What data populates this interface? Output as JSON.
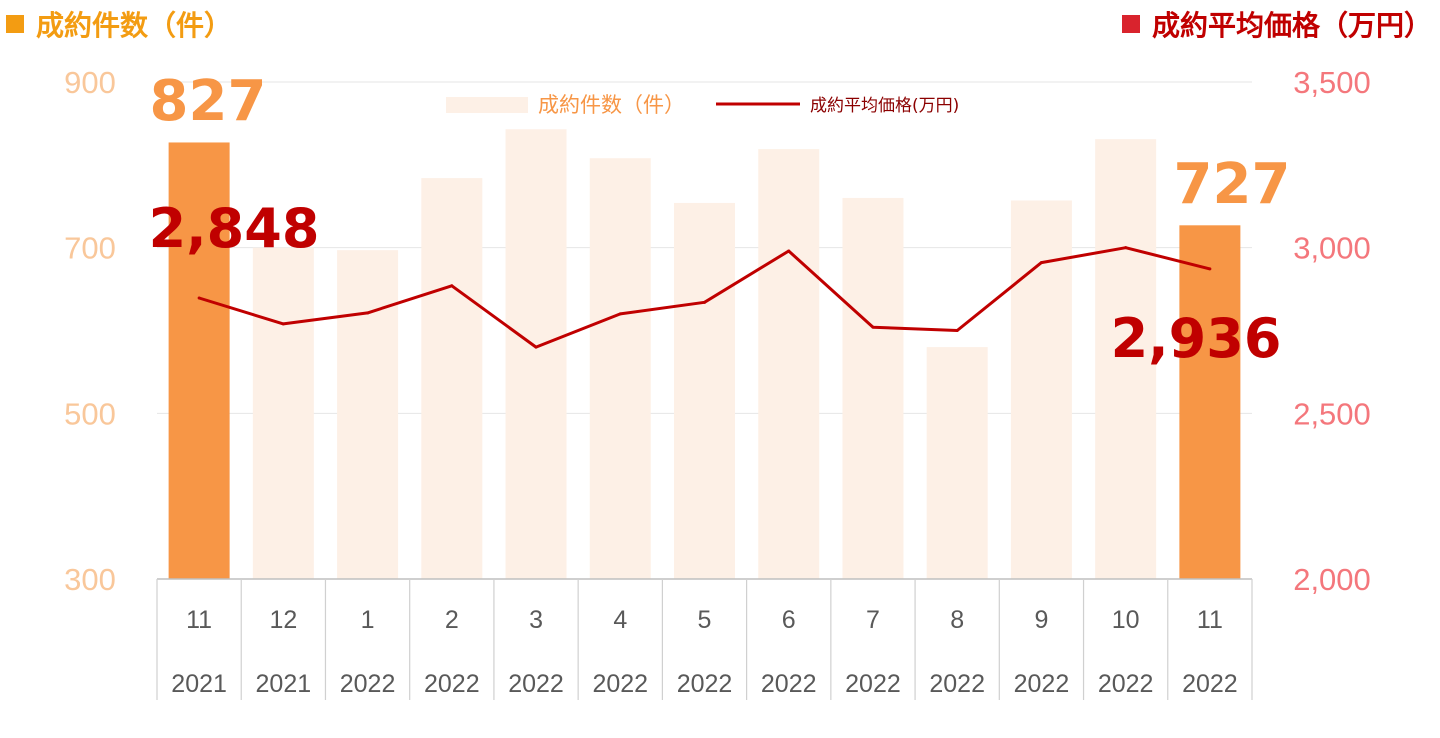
{
  "headers": {
    "left": "成約件数（件）",
    "right": "成約平均価格（万円）"
  },
  "colors": {
    "bar_highlight": "#f79646",
    "bar_faded": "#fdf0e6",
    "line": "#c00000",
    "left_axis": "#f9c79a",
    "right_axis": "#f4777c",
    "grid": "#e6e6e6",
    "axis_text": "#595959",
    "header_left": "#f39c12",
    "header_right": "#c00000"
  },
  "chart_data": {
    "type": "bar",
    "categories": [
      "11",
      "12",
      "1",
      "2",
      "3",
      "4",
      "5",
      "6",
      "7",
      "8",
      "9",
      "10",
      "11"
    ],
    "years": [
      "2021",
      "2021",
      "2022",
      "2022",
      "2022",
      "2022",
      "2022",
      "2022",
      "2022",
      "2022",
      "2022",
      "2022",
      "2022"
    ],
    "series": [
      {
        "name": "成約件数（件）",
        "type": "bar",
        "axis": "left",
        "values": [
          827,
          700,
          697,
          784,
          843,
          808,
          754,
          819,
          760,
          580,
          757,
          831,
          727
        ],
        "highlight": [
          true,
          false,
          false,
          false,
          false,
          false,
          false,
          false,
          false,
          false,
          false,
          false,
          true
        ]
      },
      {
        "name": "成約平均価格(万円)",
        "type": "line",
        "axis": "right",
        "values": [
          2848,
          2770,
          2803,
          2885,
          2700,
          2800,
          2835,
          2990,
          2760,
          2750,
          2955,
          3000,
          2936
        ]
      }
    ],
    "y_left": {
      "min": 300,
      "max": 900,
      "ticks": [
        "300",
        "500",
        "700",
        "900"
      ]
    },
    "y_right": {
      "min": 2000,
      "max": 3500,
      "ticks": [
        "2,000",
        "2,500",
        "3,000",
        "3,500"
      ]
    },
    "data_labels": {
      "first_bar": "827",
      "last_bar": "727",
      "first_line": "2,848",
      "last_line": "2,936"
    },
    "legend": {
      "position": "top-center",
      "bar_label": "成約件数（件）",
      "line_label": "成約平均価格(万円)"
    },
    "grid": true
  }
}
